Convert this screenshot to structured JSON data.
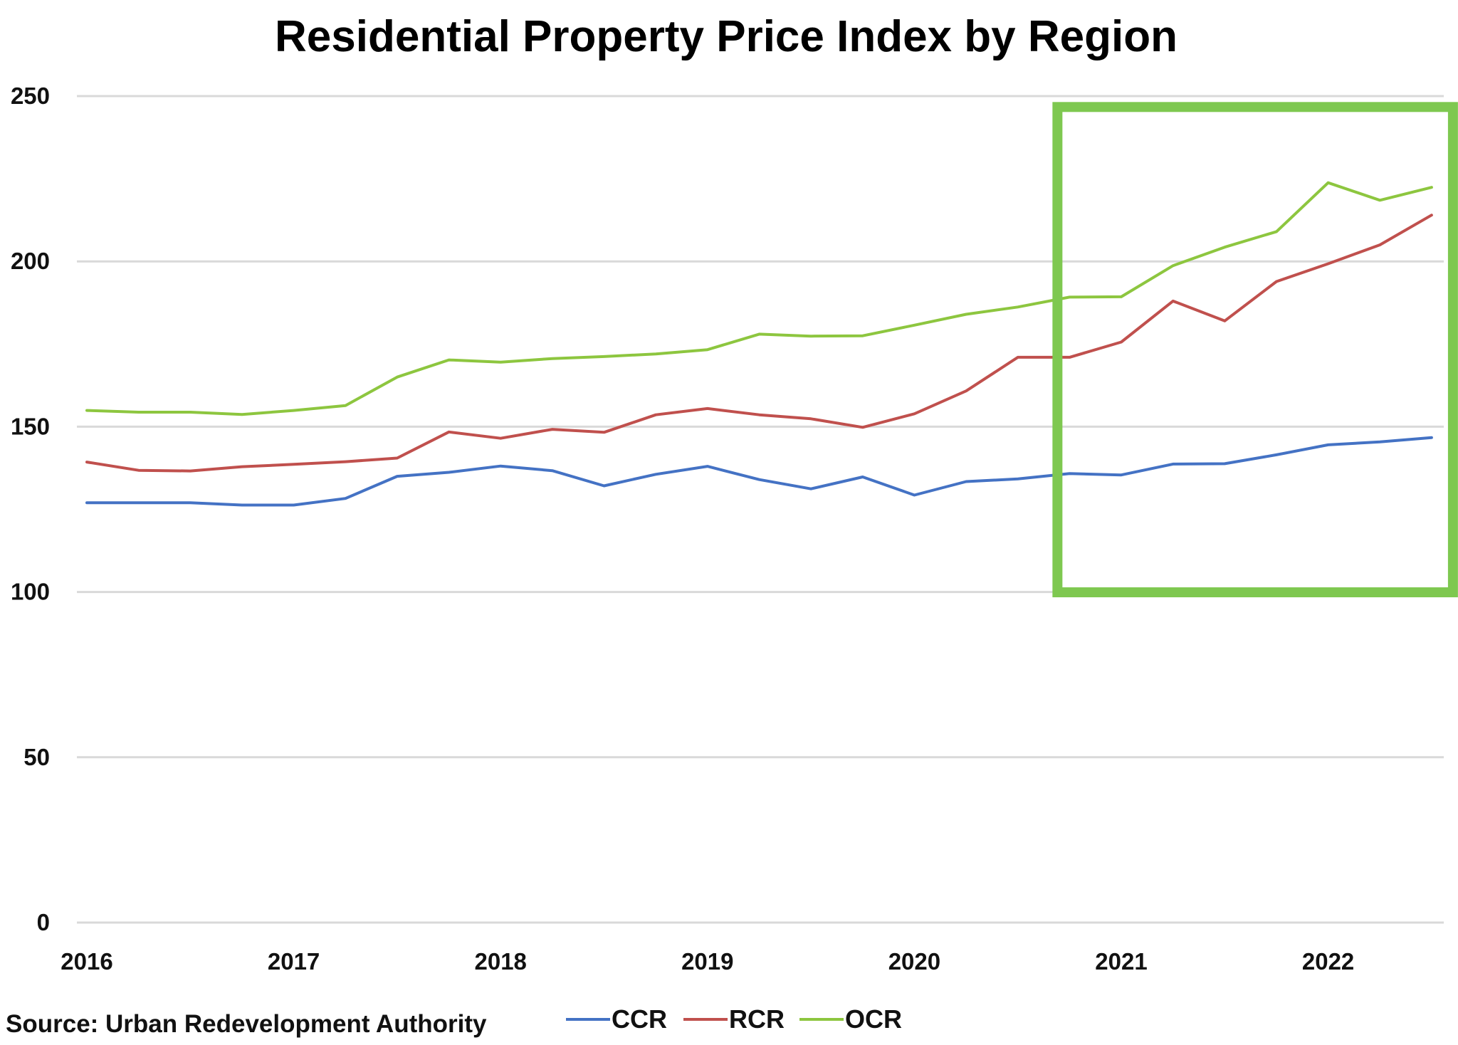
{
  "chart_data": {
    "type": "line",
    "title": "Residential Property Price Index by Region",
    "source": "Source: Urban Redevelopment Authority",
    "xlabel": "",
    "ylabel": "",
    "ylim": [
      0,
      250
    ],
    "yticks": [
      0,
      50,
      100,
      150,
      200,
      250
    ],
    "xtick_labels": [
      "2016",
      "2017",
      "2018",
      "2019",
      "2020",
      "2021",
      "2022"
    ],
    "grid": true,
    "legend_position": "bottom",
    "x": [
      "2016Q1",
      "2016Q2",
      "2016Q3",
      "2016Q4",
      "2017Q1",
      "2017Q2",
      "2017Q3",
      "2017Q4",
      "2018Q1",
      "2018Q2",
      "2018Q3",
      "2018Q4",
      "2019Q1",
      "2019Q2",
      "2019Q3",
      "2019Q4",
      "2020Q1",
      "2020Q2",
      "2020Q3",
      "2020Q4",
      "2021Q1",
      "2021Q2",
      "2021Q3",
      "2021Q4",
      "2022Q1",
      "2022Q2",
      "2022Q3"
    ],
    "series": [
      {
        "name": "CCR",
        "color": "#4472C4",
        "values": [
          127,
          127,
          127,
          126.3,
          126.3,
          128.3,
          135,
          136.2,
          138.1,
          136.7,
          132.1,
          135.6,
          138,
          134,
          131.2,
          134.8,
          129.3,
          133.4,
          134.2,
          135.8,
          135.4,
          138.7,
          138.8,
          141.5,
          144.5,
          145.4,
          146.7
        ]
      },
      {
        "name": "RCR",
        "color": "#C0504D",
        "values": [
          139.3,
          136.8,
          136.6,
          137.9,
          138.6,
          139.4,
          140.5,
          148.4,
          146.5,
          149.2,
          148.3,
          153.6,
          155.5,
          153.6,
          152.4,
          149.8,
          153.9,
          160.8,
          171,
          171,
          175.6,
          188,
          182,
          193.9,
          199.3,
          205,
          214
        ]
      },
      {
        "name": "OCR",
        "color": "#8DC63F",
        "values": [
          154.9,
          154.4,
          154.4,
          153.7,
          154.9,
          156.4,
          165,
          170.2,
          169.5,
          170.6,
          171.2,
          172,
          173.3,
          178,
          177.4,
          177.5,
          180.7,
          184,
          186.2,
          189.2,
          189.3,
          198.7,
          204.3,
          209,
          223.8,
          218.5,
          222.4
        ]
      }
    ],
    "highlight": {
      "x_from": "2020Q4",
      "x_to": "2022Q3",
      "y_from": 99.9,
      "y_to": 246.7,
      "color": "#7EC850"
    }
  }
}
